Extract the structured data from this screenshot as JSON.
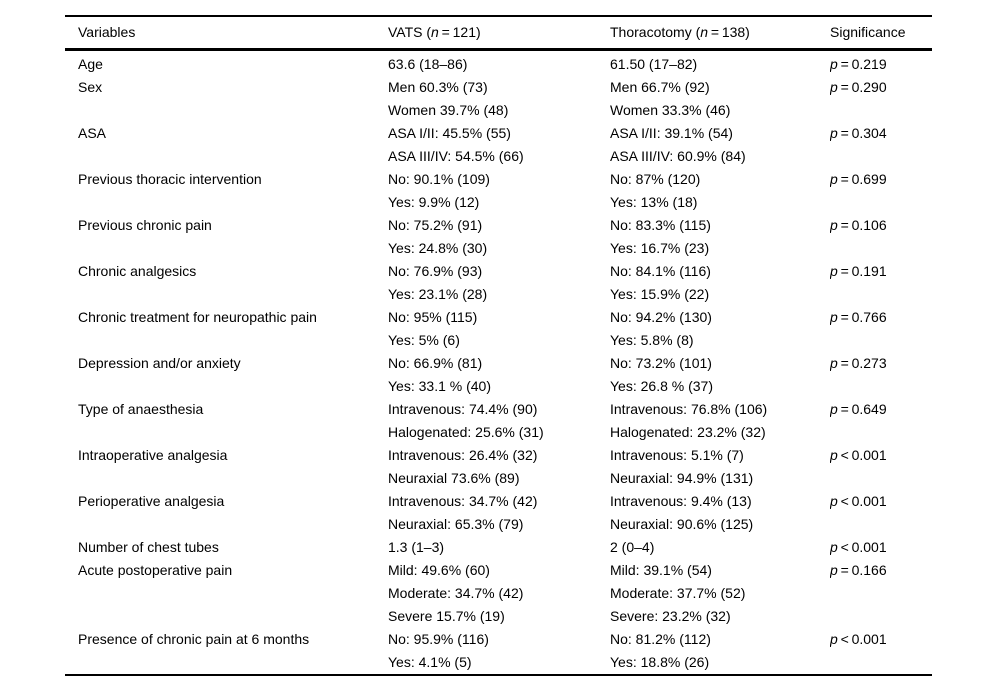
{
  "page": {
    "background_color": "#ffffff",
    "text_color": "#000000",
    "rule_color": "#000000"
  },
  "table": {
    "headers": [
      {
        "name": "variables",
        "parts": [
          {
            "text": "Variables"
          }
        ]
      },
      {
        "name": "vats",
        "parts": [
          {
            "text": "VATS ("
          },
          {
            "text": "n",
            "italic": true
          },
          {
            "text": " = 121)"
          }
        ]
      },
      {
        "name": "thoracotomy",
        "parts": [
          {
            "text": "Thoracotomy ("
          },
          {
            "text": "n",
            "italic": true
          },
          {
            "text": " = 138)"
          }
        ]
      },
      {
        "name": "significance",
        "parts": [
          {
            "text": "Significance"
          }
        ]
      }
    ],
    "rows": [
      {
        "variable": "Age",
        "vats": [
          "63.6 (18–86)"
        ],
        "thoracotomy": [
          "61.50 (17–82)"
        ],
        "significance": {
          "parts": [
            {
              "text": "p",
              "italic": true
            },
            {
              "text": " = 0.219"
            }
          ]
        }
      },
      {
        "variable": "Sex",
        "vats": [
          "Men 60.3% (73)",
          "Women 39.7% (48)"
        ],
        "thoracotomy": [
          "Men 66.7% (92)",
          "Women 33.3% (46)"
        ],
        "significance": {
          "parts": [
            {
              "text": "p",
              "italic": true
            },
            {
              "text": " = 0.290"
            }
          ]
        }
      },
      {
        "variable": "ASA",
        "vats": [
          "ASA I/II: 45.5% (55)",
          "ASA III/IV: 54.5% (66)"
        ],
        "thoracotomy": [
          "ASA I/II: 39.1% (54)",
          "ASA III/IV: 60.9% (84)"
        ],
        "significance": {
          "parts": [
            {
              "text": "p",
              "italic": true
            },
            {
              "text": " = 0.304"
            }
          ]
        }
      },
      {
        "variable": "Previous thoracic intervention",
        "vats": [
          "No: 90.1% (109)",
          "Yes: 9.9% (12)"
        ],
        "thoracotomy": [
          "No: 87% (120)",
          "Yes: 13% (18)"
        ],
        "significance": {
          "parts": [
            {
              "text": "p",
              "italic": true
            },
            {
              "text": " = 0.699"
            }
          ]
        }
      },
      {
        "variable": "Previous chronic pain",
        "vats": [
          "No: 75.2% (91)",
          "Yes: 24.8% (30)"
        ],
        "thoracotomy": [
          "No: 83.3% (115)",
          "Yes: 16.7% (23)"
        ],
        "significance": {
          "parts": [
            {
              "text": "p",
              "italic": true
            },
            {
              "text": " = 0.106"
            }
          ]
        }
      },
      {
        "variable": "Chronic analgesics",
        "vats": [
          "No: 76.9% (93)",
          "Yes: 23.1% (28)"
        ],
        "thoracotomy": [
          "No: 84.1% (116)",
          "Yes: 15.9% (22)"
        ],
        "significance": {
          "parts": [
            {
              "text": "p",
              "italic": true
            },
            {
              "text": " = 0.191"
            }
          ]
        }
      },
      {
        "variable": "Chronic treatment for neuropathic pain",
        "vats": [
          "No: 95% (115)",
          "Yes: 5% (6)"
        ],
        "thoracotomy": [
          "No: 94.2% (130)",
          "Yes: 5.8% (8)"
        ],
        "significance": {
          "parts": [
            {
              "text": "p",
              "italic": true
            },
            {
              "text": " = 0.766"
            }
          ]
        }
      },
      {
        "variable": "Depression and/or anxiety",
        "vats": [
          "No: 66.9% (81)",
          "Yes: 33.1 % (40)"
        ],
        "thoracotomy": [
          "No: 73.2% (101)",
          "Yes: 26.8 % (37)"
        ],
        "significance": {
          "parts": [
            {
              "text": "p",
              "italic": true
            },
            {
              "text": " = 0.273"
            }
          ]
        }
      },
      {
        "variable": "Type of anaesthesia",
        "vats": [
          "Intravenous: 74.4% (90)",
          "Halogenated: 25.6% (31)"
        ],
        "thoracotomy": [
          "Intravenous: 76.8% (106)",
          "Halogenated: 23.2% (32)"
        ],
        "significance": {
          "parts": [
            {
              "text": "p",
              "italic": true
            },
            {
              "text": " = 0.649"
            }
          ]
        }
      },
      {
        "variable": "Intraoperative analgesia",
        "vats": [
          "Intravenous: 26.4% (32)",
          "Neuraxial 73.6% (89)"
        ],
        "thoracotomy": [
          "Intravenous: 5.1% (7)",
          "Neuraxial: 94.9% (131)"
        ],
        "significance": {
          "parts": [
            {
              "text": "p",
              "italic": true
            },
            {
              "text": " < 0.001"
            }
          ]
        }
      },
      {
        "variable": "Perioperative analgesia",
        "vats": [
          "Intravenous: 34.7% (42)",
          "Neuraxial: 65.3% (79)"
        ],
        "thoracotomy": [
          "Intravenous: 9.4% (13)",
          "Neuraxial: 90.6% (125)"
        ],
        "significance": {
          "parts": [
            {
              "text": "p",
              "italic": true
            },
            {
              "text": " < 0.001"
            }
          ]
        }
      },
      {
        "variable": "Number of chest tubes",
        "vats": [
          "1.3 (1–3)"
        ],
        "thoracotomy": [
          "2 (0–4)"
        ],
        "significance": {
          "parts": [
            {
              "text": "p",
              "italic": true
            },
            {
              "text": " < 0.001"
            }
          ]
        }
      },
      {
        "variable": "Acute postoperative pain",
        "vats": [
          "Mild: 49.6% (60)",
          "Moderate: 34.7% (42)",
          "Severe 15.7% (19)"
        ],
        "thoracotomy": [
          "Mild: 39.1% (54)",
          "Moderate: 37.7% (52)",
          "Severe: 23.2% (32)"
        ],
        "significance": {
          "parts": [
            {
              "text": "p",
              "italic": true
            },
            {
              "text": " = 0.166"
            }
          ]
        }
      },
      {
        "variable": "Presence of chronic pain at 6 months",
        "vats": [
          "No: 95.9% (116)",
          "Yes: 4.1% (5)"
        ],
        "thoracotomy": [
          "No: 81.2% (112)",
          "Yes: 18.8% (26)"
        ],
        "significance": {
          "parts": [
            {
              "text": "p",
              "italic": true
            },
            {
              "text": " < 0.001"
            }
          ]
        }
      }
    ]
  }
}
